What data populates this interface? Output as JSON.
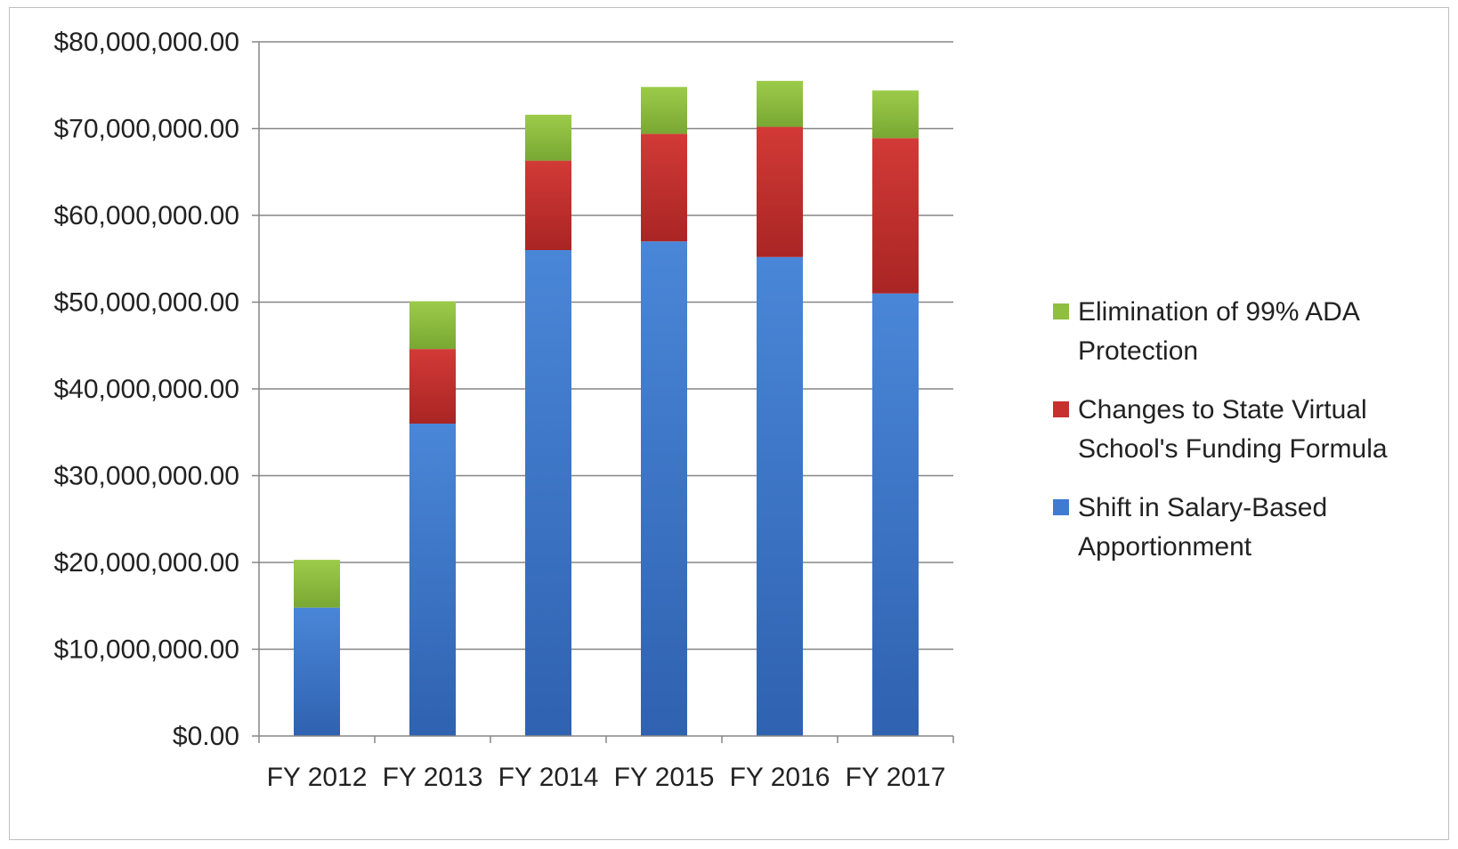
{
  "chart_data": {
    "type": "bar",
    "stacked": true,
    "title": "",
    "xlabel": "",
    "ylabel": "",
    "categories": [
      "FY 2012",
      "FY 2013",
      "FY 2014",
      "FY 2015",
      "FY 2016",
      "FY 2017"
    ],
    "ylim": [
      0,
      80000000
    ],
    "ytick_values": [
      0,
      10000000,
      20000000,
      30000000,
      40000000,
      50000000,
      60000000,
      70000000,
      80000000
    ],
    "ytick_labels": [
      "$0.00",
      "$10,000,000.00",
      "$20,000,000.00",
      "$30,000,000.00",
      "$40,000,000.00",
      "$50,000,000.00",
      "$60,000,000.00",
      "$70,000,000.00",
      "$80,000,000.00"
    ],
    "grid": true,
    "legend_position": "right",
    "series": [
      {
        "name": "Shift in Salary-Based Apportionment",
        "color": "#3f7bd0",
        "values": [
          14800000,
          36000000,
          56000000,
          57000000,
          55200000,
          51000000
        ]
      },
      {
        "name": "Changes to State Virtual School's Funding Formula",
        "color": "#c8302f",
        "values": [
          0,
          8600000,
          10300000,
          12400000,
          15000000,
          17900000
        ]
      },
      {
        "name": "Elimination of 99% ADA Protection",
        "color": "#8fbf3f",
        "values": [
          5500000,
          5500000,
          5300000,
          5400000,
          5300000,
          5500000
        ]
      }
    ],
    "legend": [
      {
        "lines": [
          "Elimination of 99% ADA",
          "Protection"
        ],
        "color": "#8fbf3f"
      },
      {
        "lines": [
          "Changes to State Virtual",
          "School's Funding Formula"
        ],
        "color": "#c8302f"
      },
      {
        "lines": [
          "Shift in Salary-Based",
          "Apportionment"
        ],
        "color": "#3f7bd0"
      }
    ]
  }
}
